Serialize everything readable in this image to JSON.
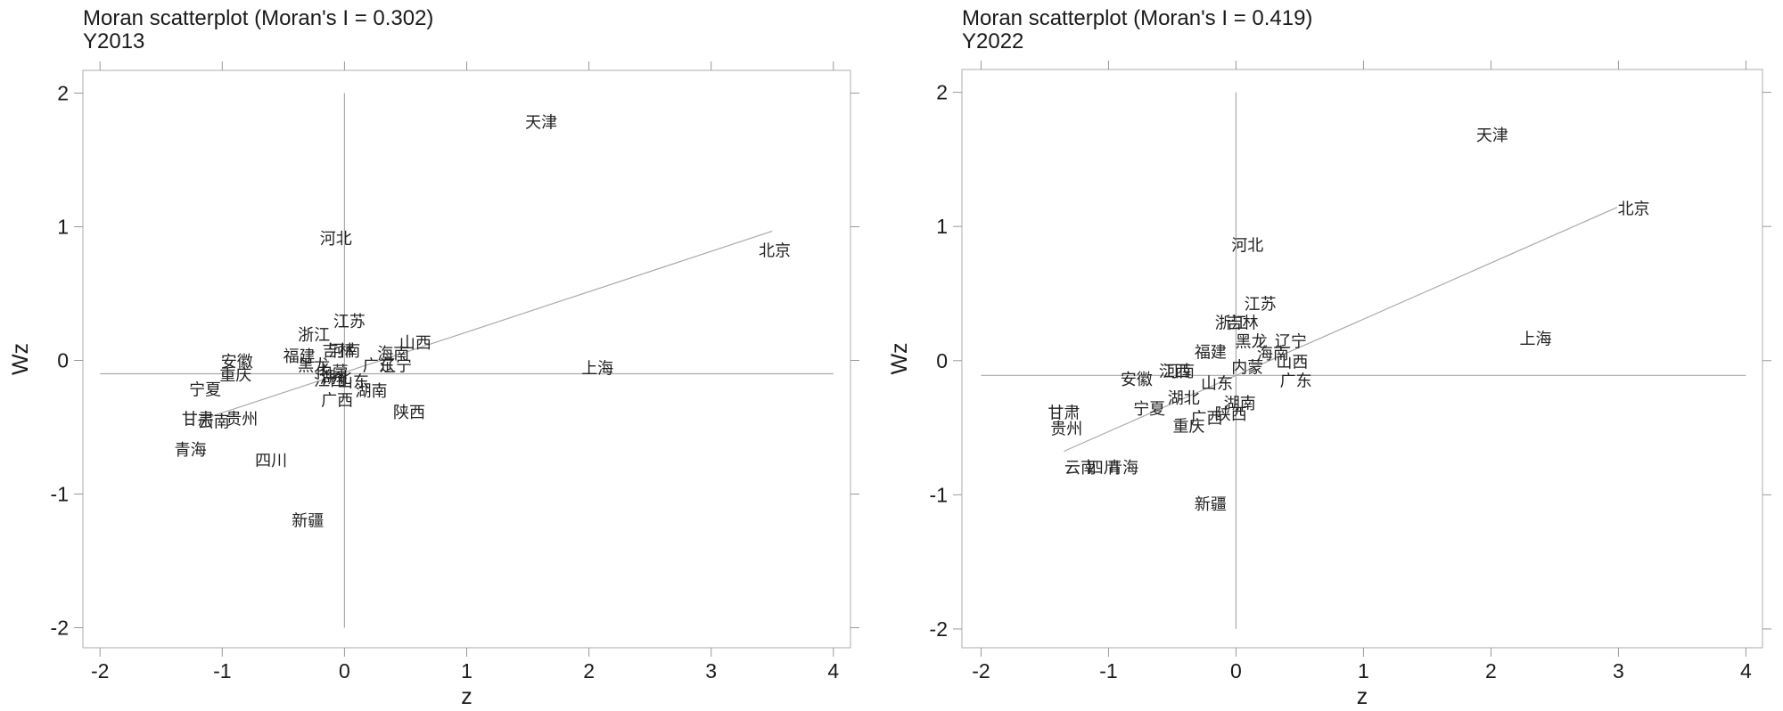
{
  "chart_data": [
    {
      "type": "scatter",
      "title": "Moran scatterplot (Moran's I = 0.302)",
      "subtitle": "Y2013",
      "xlabel": "z",
      "ylabel": "Wz",
      "xlim": [
        -2.14,
        4.14
      ],
      "ylim": [
        -2.15,
        2.17
      ],
      "xticks": [
        -2,
        -1,
        0,
        1,
        2,
        3,
        4
      ],
      "yticks": [
        -2,
        -1,
        0,
        1,
        2
      ],
      "hline": -0.1,
      "vline": 0,
      "fit": {
        "slope": 0.302,
        "intercept": -0.09,
        "xrange": [
          -1.2,
          3.5
        ]
      },
      "labels": [
        "天津",
        "北京",
        "河北",
        "江苏",
        "浙江",
        "吉林",
        "河南",
        "海南",
        "山西",
        "福建",
        "安徽",
        "重庆",
        "黑龙",
        "内蒙",
        "辽宁",
        "广东",
        "上海",
        "湖南",
        "山东",
        "湖北",
        "江西",
        "广西",
        "陕西",
        "宁夏",
        "甘肃",
        "云南",
        "贵州",
        "青海",
        "四川",
        "新疆"
      ],
      "x": [
        1.61,
        3.52,
        -0.07,
        0.04,
        -0.25,
        -0.05,
        0.0,
        0.4,
        0.58,
        -0.37,
        -0.88,
        -0.89,
        -0.25,
        -0.1,
        0.42,
        0.28,
        2.07,
        0.22,
        0.07,
        -0.07,
        -0.12,
        -0.06,
        0.53,
        -1.14,
        -1.2,
        -1.07,
        -0.84,
        -1.26,
        -0.6,
        -0.3
      ],
      "values": [
        1.78,
        0.82,
        0.91,
        0.29,
        0.19,
        0.07,
        0.07,
        0.05,
        0.13,
        0.03,
        -0.01,
        -0.11,
        -0.04,
        -0.09,
        -0.04,
        -0.04,
        -0.06,
        -0.23,
        -0.16,
        -0.13,
        -0.15,
        -0.3,
        -0.39,
        -0.22,
        -0.44,
        -0.46,
        -0.44,
        -0.67,
        -0.75,
        -1.2
      ]
    },
    {
      "type": "scatter",
      "title": "Moran scatterplot (Moran's I = 0.419)",
      "subtitle": "Y2022",
      "xlabel": "z",
      "ylabel": "Wz",
      "xlim": [
        -2.15,
        4.13
      ],
      "ylim": [
        -2.14,
        2.17
      ],
      "xticks": [
        -2,
        -1,
        0,
        1,
        2,
        3,
        4
      ],
      "yticks": [
        -2,
        -1,
        0,
        1,
        2
      ],
      "hline": -0.11,
      "vline": 0,
      "fit": {
        "slope": 0.419,
        "intercept": -0.11,
        "xrange": [
          -1.35,
          2.99
        ]
      },
      "labels": [
        "天津",
        "北京",
        "河北",
        "江苏",
        "吉林",
        "浙江",
        "辽宁",
        "黑龙",
        "上海",
        "福建",
        "海南",
        "山西",
        "内蒙",
        "广东",
        "安徽",
        "江西",
        "河南",
        "山东",
        "湖北",
        "湖南",
        "宁夏",
        "广西",
        "陕西",
        "重庆",
        "甘肃",
        "贵州",
        "云南",
        "四川",
        "青海",
        "新疆"
      ],
      "x": [
        2.01,
        3.12,
        0.09,
        0.19,
        0.05,
        -0.04,
        0.43,
        0.12,
        2.35,
        -0.2,
        0.29,
        0.44,
        0.09,
        0.47,
        -0.78,
        -0.48,
        -0.45,
        -0.15,
        -0.41,
        0.03,
        -0.68,
        -0.23,
        -0.04,
        -0.37,
        -1.35,
        -1.33,
        -1.22,
        -1.04,
        -0.89,
        -0.2
      ],
      "values": [
        1.68,
        1.13,
        0.86,
        0.42,
        0.28,
        0.28,
        0.14,
        0.14,
        0.16,
        0.06,
        0.05,
        -0.01,
        -0.05,
        -0.15,
        -0.14,
        -0.08,
        -0.08,
        -0.17,
        -0.28,
        -0.32,
        -0.36,
        -0.43,
        -0.4,
        -0.49,
        -0.39,
        -0.51,
        -0.8,
        -0.8,
        -0.8,
        -1.07
      ]
    }
  ]
}
